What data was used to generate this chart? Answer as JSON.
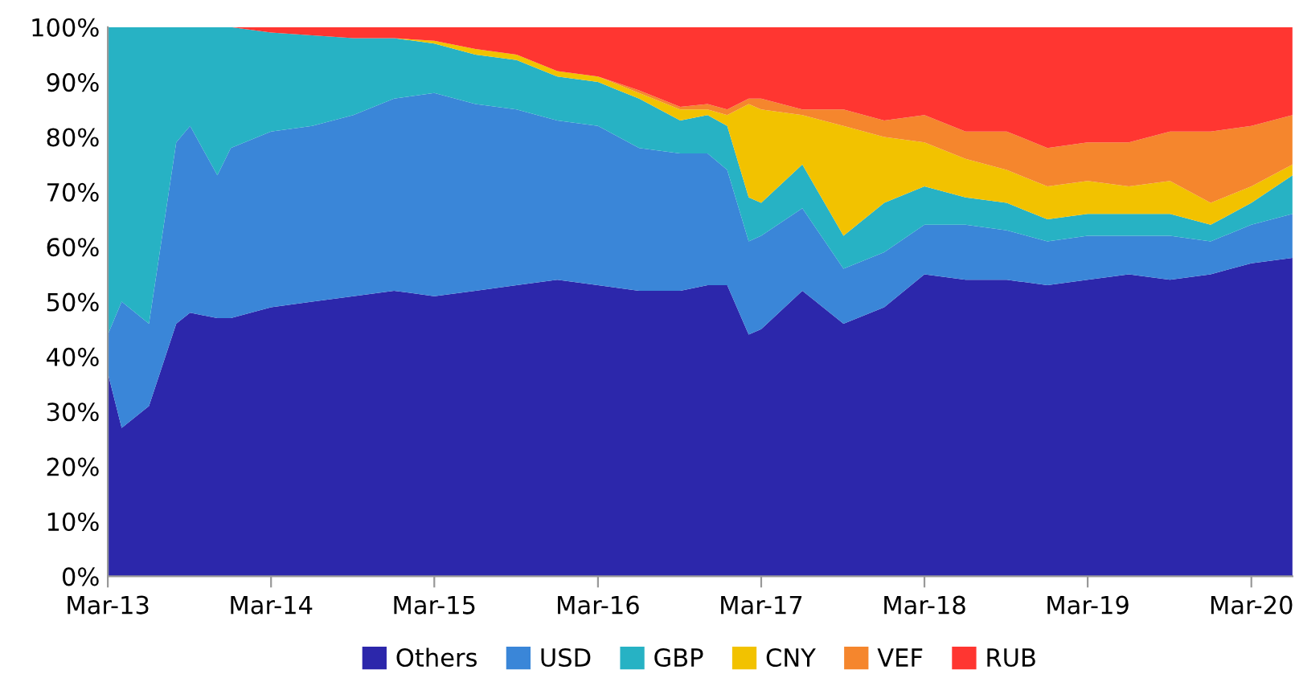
{
  "chart_data": {
    "type": "area",
    "stacked": true,
    "legend": "bottom",
    "grid": false,
    "x": [
      "2013-03-01",
      "2013-04-01",
      "2013-06-01",
      "2013-08-01",
      "2013-09-01",
      "2013-11-01",
      "2013-12-01",
      "2014-03-01",
      "2014-06-01",
      "2014-09-01",
      "2014-12-01",
      "2015-03-01",
      "2015-06-01",
      "2015-09-01",
      "2015-12-01",
      "2016-03-01",
      "2016-06-01",
      "2016-09-01",
      "2016-11-01",
      "2016-12-15",
      "2017-02-01",
      "2017-03-01",
      "2017-06-01",
      "2017-09-01",
      "2017-12-01",
      "2018-03-01",
      "2018-06-01",
      "2018-09-01",
      "2018-12-01",
      "2019-03-01",
      "2019-06-01",
      "2019-09-01",
      "2019-12-01",
      "2020-03-01",
      "2020-06-01"
    ],
    "series": [
      {
        "name": "Others",
        "color": "#2c27ab",
        "values": [
          37,
          27,
          31,
          46,
          48,
          47,
          47,
          49,
          50,
          51,
          52,
          51,
          52,
          53,
          54,
          53,
          52,
          52,
          53,
          53,
          44,
          45,
          52,
          46,
          49,
          55,
          54,
          54,
          53,
          54,
          55,
          54,
          55,
          57,
          58
        ]
      },
      {
        "name": "USD",
        "color": "#3a86d8",
        "values": [
          7,
          23,
          15,
          33,
          34,
          26,
          31,
          32,
          32,
          33,
          35,
          37,
          34,
          32,
          29,
          29,
          26,
          25,
          24,
          21,
          17,
          17,
          15,
          10,
          10,
          9,
          10,
          9,
          8,
          8,
          7,
          8,
          6,
          7,
          8
        ]
      },
      {
        "name": "GBP",
        "color": "#27b2c4",
        "values": [
          56,
          50,
          54,
          21,
          18,
          27,
          22,
          18,
          16.5,
          14,
          11,
          9,
          9,
          9,
          8,
          8,
          9,
          6,
          7,
          8,
          8,
          6,
          8,
          6,
          9,
          7,
          5,
          5,
          4,
          4,
          4,
          4,
          3,
          4,
          7
        ]
      },
      {
        "name": "CNY",
        "color": "#f2c200",
        "values": [
          0,
          0,
          0,
          0,
          0,
          0,
          0,
          0,
          0,
          0,
          0,
          0.5,
          1,
          1,
          1,
          1,
          1,
          2,
          1,
          2,
          17,
          17,
          9,
          20,
          12,
          8,
          7,
          6,
          6,
          6,
          5,
          6,
          4,
          3,
          2
        ]
      },
      {
        "name": "VEF",
        "color": "#f5862d",
        "values": [
          0,
          0,
          0,
          0,
          0,
          0,
          0,
          0,
          0,
          0,
          0,
          0,
          0,
          0,
          0,
          0,
          0.5,
          0.5,
          1,
          1,
          1,
          2,
          1,
          3,
          3,
          5,
          5,
          7,
          7,
          7,
          8,
          9,
          13,
          11,
          9
        ]
      },
      {
        "name": "RUB",
        "color": "#ff3631",
        "values": [
          0,
          0,
          0,
          0,
          0,
          0,
          0,
          1,
          1.5,
          2,
          2,
          2.5,
          4,
          5,
          8,
          9,
          11.5,
          14.5,
          14,
          15,
          13,
          13,
          15,
          15,
          17,
          16,
          19,
          19,
          22,
          21,
          21,
          19,
          19,
          18,
          16
        ]
      }
    ],
    "xlim": [
      "2013-03-01",
      "2020-06-01"
    ],
    "xticks": [
      {
        "value": "2013-03-01",
        "label": "Mar-13"
      },
      {
        "value": "2014-03-01",
        "label": "Mar-14"
      },
      {
        "value": "2015-03-01",
        "label": "Mar-15"
      },
      {
        "value": "2016-03-01",
        "label": "Mar-16"
      },
      {
        "value": "2017-03-01",
        "label": "Mar-17"
      },
      {
        "value": "2018-03-01",
        "label": "Mar-18"
      },
      {
        "value": "2019-03-01",
        "label": "Mar-19"
      },
      {
        "value": "2020-03-01",
        "label": "Mar-20"
      }
    ],
    "ylim": [
      0,
      100
    ],
    "yticks": [
      {
        "value": 0,
        "label": "0%"
      },
      {
        "value": 10,
        "label": "10%"
      },
      {
        "value": 20,
        "label": "20%"
      },
      {
        "value": 30,
        "label": "30%"
      },
      {
        "value": 40,
        "label": "40%"
      },
      {
        "value": 50,
        "label": "50%"
      },
      {
        "value": 60,
        "label": "60%"
      },
      {
        "value": 70,
        "label": "70%"
      },
      {
        "value": 80,
        "label": "80%"
      },
      {
        "value": 90,
        "label": "90%"
      },
      {
        "value": 100,
        "label": "100%"
      }
    ]
  }
}
